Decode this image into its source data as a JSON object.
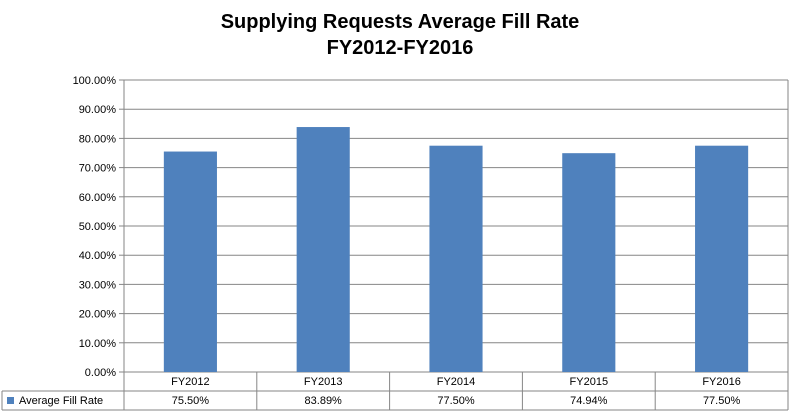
{
  "chart_data": {
    "type": "bar",
    "title": "Supplying Requests Average Fill Rate",
    "subtitle": "FY2012-FY2016",
    "categories": [
      "FY2012",
      "FY2013",
      "FY2014",
      "FY2015",
      "FY2016"
    ],
    "series": [
      {
        "name": "Average Fill Rate",
        "values": [
          75.5,
          83.89,
          77.5,
          74.94,
          77.5
        ],
        "value_labels": [
          "75.50%",
          "83.89%",
          "77.50%",
          "74.94%",
          "77.50%"
        ],
        "color": "#4F81BD"
      }
    ],
    "ylim": [
      0,
      100
    ],
    "yticks": [
      "0.00%",
      "10.00%",
      "20.00%",
      "30.00%",
      "40.00%",
      "50.00%",
      "60.00%",
      "70.00%",
      "80.00%",
      "90.00%",
      "100.00%"
    ],
    "grid": true,
    "legend": "data-table-bottom"
  },
  "colors": {
    "bar": "#4F81BD",
    "grid": "#868686",
    "axis": "#868686"
  }
}
